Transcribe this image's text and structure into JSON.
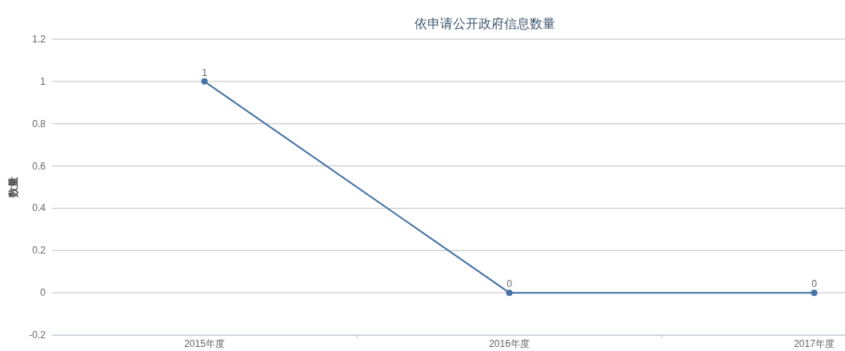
{
  "chart_data": {
    "type": "line",
    "title": "依申请公开政府信息数量",
    "ylabel": "数量",
    "categories": [
      "2015年度",
      "2016年度",
      "2017年度"
    ],
    "series": [
      {
        "color": "#4572a7",
        "values": [
          1,
          0,
          0
        ]
      }
    ],
    "ylim": [
      -0.2,
      1.2
    ],
    "yticks": [
      -0.2,
      0,
      0.2,
      0.4,
      0.6,
      0.8,
      1,
      1.2
    ],
    "grid": "y",
    "marker": "circle",
    "line_style": "solid",
    "data_labels": true
  }
}
